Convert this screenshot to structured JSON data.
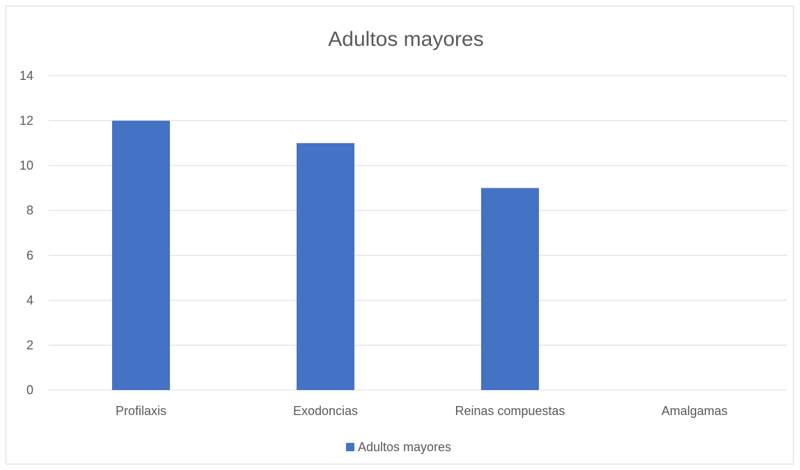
{
  "chart_data": {
    "type": "bar",
    "title": "Adultos mayores",
    "xlabel": "",
    "ylabel": "",
    "categories": [
      "Profilaxis",
      "Exodoncias",
      "Reinas compuestas",
      "Amalgamas"
    ],
    "series": [
      {
        "name": "Adultos mayores",
        "values": [
          12,
          11,
          9,
          0
        ],
        "color": "#4472c4"
      }
    ],
    "ylim": [
      0,
      14
    ],
    "yticks": [
      "0",
      "2",
      "4",
      "6",
      "8",
      "10",
      "12",
      "14"
    ],
    "grid": true,
    "legend_position": "bottom",
    "colors": {
      "gridline": "#d9d9d9",
      "text": "#595959",
      "border": "#d9d9d9"
    }
  }
}
